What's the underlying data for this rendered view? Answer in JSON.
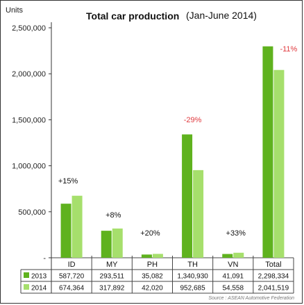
{
  "header": {
    "units": "Units",
    "title": "Total car production",
    "subtitle": "(Jan-June 2014)"
  },
  "source": "Source : ASEAN Automotive Federation",
  "colors": {
    "y2013": "#5fb21e",
    "y2014": "#a6df6c",
    "pos": "#111111",
    "neg": "#e0393e"
  },
  "chart_data": {
    "type": "bar",
    "categories": [
      "ID",
      "MY",
      "PH",
      "TH",
      "VN",
      "Total"
    ],
    "series": [
      {
        "name": "2013",
        "values": [
          587720,
          293511,
          35082,
          1340930,
          41091,
          2298334
        ]
      },
      {
        "name": "2014",
        "values": [
          674364,
          317892,
          42020,
          952685,
          54558,
          2041519
        ]
      }
    ],
    "table_text": [
      [
        "587,720",
        "293,511",
        "35,082",
        "1,340,930",
        "41,091",
        "2,298,334"
      ],
      [
        "674,364",
        "317,892",
        "42,020",
        "952,685",
        "54,558",
        "2,041,519"
      ]
    ],
    "annotations": [
      "+15%",
      "+8%",
      "+20%",
      "-29%",
      "+33%",
      "-11%"
    ],
    "annotation_negative": [
      false,
      false,
      false,
      true,
      false,
      true
    ],
    "yticks": [
      "-",
      "500,000",
      "1,000,000",
      "1,500,000",
      "2,000,000",
      "2,500,000"
    ],
    "ylim": [
      0,
      2500000
    ],
    "legend": "table-left",
    "grid": false
  }
}
